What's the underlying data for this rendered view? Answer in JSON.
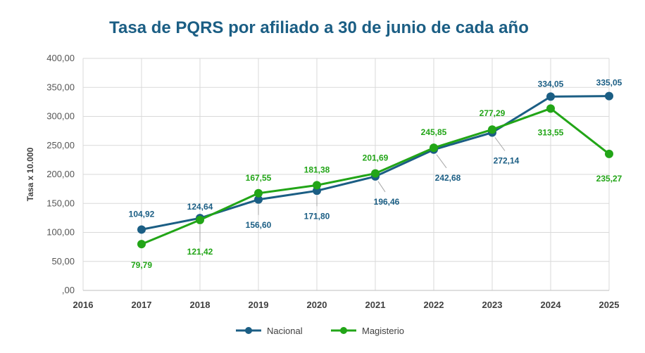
{
  "chart_data": {
    "type": "line",
    "title": "Tasa de PQRS por afiliado a 30 de junio de cada año",
    "xlabel": "",
    "ylabel": "Tasa x 10.000",
    "categories": [
      "2016",
      "2017",
      "2018",
      "2019",
      "2020",
      "2021",
      "2022",
      "2023",
      "2024",
      "2025"
    ],
    "ylim": [
      0,
      400
    ],
    "yticks": [
      0,
      50,
      100,
      150,
      200,
      250,
      300,
      350,
      400
    ],
    "ytick_labels": [
      ",00",
      "50,00",
      "100,00",
      "150,00",
      "200,00",
      "250,00",
      "300,00",
      "350,00",
      "400,00"
    ],
    "grid": true,
    "legend_position": "bottom",
    "series": [
      {
        "name": "Nacional",
        "color": "#1B5E84",
        "values": [
          null,
          104.92,
          124.64,
          156.6,
          171.8,
          196.46,
          242.68,
          272.14,
          334.05,
          335.05
        ],
        "labels": [
          null,
          "104,92",
          "124,64",
          "156,60",
          "171,80",
          "196,46",
          "242,68",
          "272,14",
          "334,05",
          "335,05"
        ]
      },
      {
        "name": "Magisterio",
        "color": "#22A517",
        "values": [
          null,
          79.79,
          121.42,
          167.55,
          181.38,
          201.69,
          245.85,
          277.29,
          313.55,
          235.27
        ],
        "labels": [
          null,
          "79,79",
          "121,42",
          "167,55",
          "181,38",
          "201,69",
          "245,85",
          "277,29",
          "313,55",
          "235,27"
        ]
      }
    ],
    "title_color": "#1B5E84",
    "grid_color": "#D9D9D9"
  }
}
